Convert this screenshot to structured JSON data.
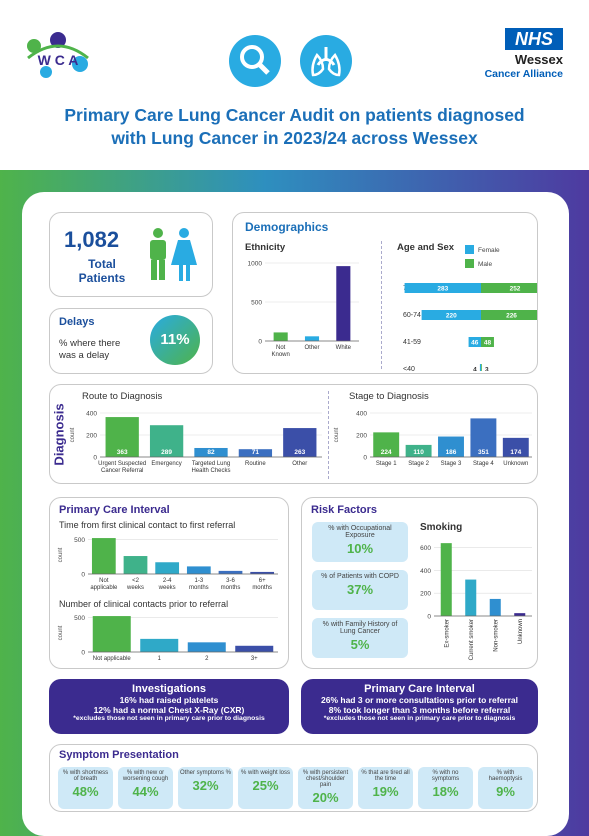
{
  "header": {
    "logo_wca": "W C A",
    "nhs": "NHS",
    "org1": "Wessex",
    "org2": "Cancer Alliance",
    "title_line1": "Primary Care Lung Cancer Audit on patients diagnosed",
    "title_line2": "with Lung Cancer in 2023/24 across Wessex"
  },
  "total": {
    "value": "1,082",
    "label1": "Total",
    "label2": "Patients"
  },
  "delays": {
    "title": "Delays",
    "label1": "% where there",
    "label2": "was a delay",
    "value": "11%"
  },
  "demographics": {
    "title": "Demographics",
    "ethnicity_title": "Ethnicity",
    "agesex_title": "Age and Sex",
    "legend_female": "Female",
    "legend_male": "Male"
  },
  "diagnosis": {
    "side": "Diagnosis",
    "route_title": "Route to Diagnosis",
    "stage_title": "Stage to Diagnosis"
  },
  "pci": {
    "title": "Primary Care Interval",
    "sub1": "Time from first clinical contact to first referral",
    "sub2": "Number of clinical contacts prior to referral"
  },
  "risk": {
    "title": "Risk Factors",
    "smoking_title": "Smoking",
    "stats": [
      {
        "label": "% with Occupational Exposure",
        "value": "10%"
      },
      {
        "label": "% of Patients with COPD",
        "value": "37%"
      },
      {
        "label": "% with Family History of Lung Cancer",
        "value": "5%"
      }
    ]
  },
  "investigations": {
    "title": "Investigations",
    "l1a": "16%",
    "l1b": " had raised platelets",
    "l2a": "12%",
    "l2b": " had a normal Chest X-Ray (CXR)",
    "note": "*excludes those not seen in primary care prior to diagnosis"
  },
  "pci_box": {
    "title": "Primary Care Interval",
    "l1a": "26%",
    "l1b": " had 3 or more consultations prior to referral",
    "l2a": "8%",
    "l2b": " took longer than 3 months before referral",
    "note": "*excludes those not seen in primary care prior to diagnosis"
  },
  "symptoms": {
    "title": "Symptom Presentation",
    "items": [
      {
        "label": "% with shortness of breath",
        "value": "48%"
      },
      {
        "label": "% with new or worsening cough",
        "value": "44%"
      },
      {
        "label": "Other symptoms %",
        "value": "32%"
      },
      {
        "label": "% with weight loss",
        "value": "25%"
      },
      {
        "label": "% with persistent chest/shoulder pain",
        "value": "20%"
      },
      {
        "label": "% that are tired all the time",
        "value": "19%"
      },
      {
        "label": "% with no symptoms",
        "value": "18%"
      },
      {
        "label": "% with haemoptysis",
        "value": "9%"
      }
    ]
  },
  "colors": {
    "green": "#4fb34a",
    "blue": "#29abe2",
    "navy": "#3b2b8f",
    "title": "#1b6fb8"
  },
  "chart_data": [
    {
      "type": "bar",
      "id": "ethnicity",
      "categories": [
        "Not Known",
        "Other",
        "White"
      ],
      "values": [
        110,
        60,
        960
      ],
      "ylim": [
        0,
        1000
      ],
      "yticks": [
        0,
        500,
        1000
      ]
    },
    {
      "type": "bar",
      "id": "agesex",
      "orientation": "horizontal",
      "categories": [
        "75+",
        "60-74",
        "41-59",
        "<40"
      ],
      "series": [
        {
          "name": "Female",
          "values": [
            283,
            220,
            46,
            4
          ]
        },
        {
          "name": "Male",
          "values": [
            252,
            226,
            48,
            3
          ]
        }
      ]
    },
    {
      "type": "bar",
      "id": "route",
      "categories": [
        "Urgent Suspected Cancer Referral",
        "Emergency",
        "Targeted Lung Health Checks",
        "Routine",
        "Other"
      ],
      "values": [
        363,
        289,
        82,
        71,
        263
      ],
      "ylabel": "count",
      "ylim": [
        0,
        400
      ],
      "yticks": [
        0,
        200,
        400
      ]
    },
    {
      "type": "bar",
      "id": "stage",
      "categories": [
        "Stage 1",
        "Stage 2",
        "Stage 3",
        "Stage 4",
        "Unknown"
      ],
      "values": [
        224,
        110,
        186,
        351,
        174
      ],
      "ylabel": "count",
      "ylim": [
        0,
        400
      ],
      "yticks": [
        0,
        200,
        400
      ]
    },
    {
      "type": "bar",
      "id": "time",
      "categories": [
        "Not applicable",
        "<2 weeks",
        "2-4 weeks",
        "1-3 months",
        "3-6 months",
        "6+ months"
      ],
      "values": [
        520,
        260,
        170,
        110,
        45,
        30
      ],
      "ylabel": "count",
      "ylim": [
        0,
        550
      ],
      "yticks": [
        0,
        500
      ]
    },
    {
      "type": "bar",
      "id": "contacts",
      "categories": [
        "Not applicable",
        "1",
        "2",
        "3+"
      ],
      "values": [
        520,
        190,
        140,
        90
      ],
      "ylabel": "count",
      "ylim": [
        0,
        550
      ],
      "yticks": [
        0,
        500
      ]
    },
    {
      "type": "bar",
      "id": "smoking",
      "categories": [
        "Ex-smoker",
        "Current smoker",
        "Non-smoker",
        "Unknown"
      ],
      "values": [
        640,
        320,
        150,
        25
      ],
      "ylim": [
        0,
        650
      ],
      "yticks": [
        0,
        200,
        400,
        600
      ]
    }
  ]
}
